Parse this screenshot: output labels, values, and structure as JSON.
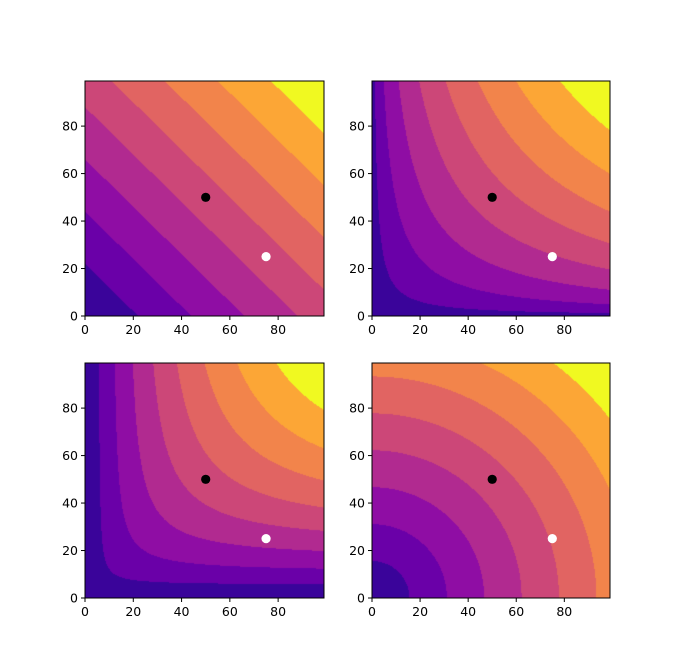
{
  "figure": {
    "layout": "2x2 grid of filled contour plots"
  },
  "chart_data": [
    {
      "type": "contour",
      "panel": "top-left",
      "function": "linear (x + y)",
      "xlim": [
        0,
        99
      ],
      "ylim": [
        0,
        99
      ],
      "xticks": [
        0,
        20,
        40,
        60,
        80
      ],
      "yticks": [
        0,
        20,
        40,
        60,
        80
      ],
      "xtick_labels": [
        "0",
        "20",
        "40",
        "60",
        "80"
      ],
      "ytick_labels": [
        "0",
        "20",
        "40",
        "60",
        "80"
      ],
      "levels": 9,
      "colormap": "plasma",
      "markers": [
        {
          "x": 50,
          "y": 50,
          "color": "#000000"
        },
        {
          "x": 75,
          "y": 25,
          "color": "#ffffff"
        }
      ]
    },
    {
      "type": "contour",
      "panel": "top-right",
      "function": "product sqrt (x*y)",
      "xlim": [
        0,
        99
      ],
      "ylim": [
        0,
        99
      ],
      "xticks": [
        0,
        20,
        40,
        60,
        80
      ],
      "yticks": [
        0,
        20,
        40,
        60,
        80
      ],
      "xtick_labels": [
        "0",
        "20",
        "40",
        "60",
        "80"
      ],
      "ytick_labels": [
        "0",
        "20",
        "40",
        "60",
        "80"
      ],
      "levels": 9,
      "colormap": "plasma",
      "markers": [
        {
          "x": 50,
          "y": 50,
          "color": "#000000"
        },
        {
          "x": 75,
          "y": 25,
          "color": "#ffffff"
        }
      ]
    },
    {
      "type": "contour",
      "panel": "bottom-left",
      "function": "Leontief-like min (x,y)",
      "xlim": [
        0,
        99
      ],
      "ylim": [
        0,
        99
      ],
      "xticks": [
        0,
        20,
        40,
        60,
        80
      ],
      "yticks": [
        0,
        20,
        40,
        60,
        80
      ],
      "xtick_labels": [
        "0",
        "20",
        "40",
        "60",
        "80"
      ],
      "ytick_labels": [
        "0",
        "20",
        "40",
        "60",
        "80"
      ],
      "levels": 9,
      "colormap": "plasma",
      "markers": [
        {
          "x": 50,
          "y": 50,
          "color": "#000000"
        },
        {
          "x": 75,
          "y": 25,
          "color": "#ffffff"
        }
      ]
    },
    {
      "type": "contour",
      "panel": "bottom-right",
      "function": "radial sqrt(x^2 + y^2)",
      "xlim": [
        0,
        99
      ],
      "ylim": [
        0,
        99
      ],
      "xticks": [
        0,
        20,
        40,
        60,
        80
      ],
      "yticks": [
        0,
        20,
        40,
        60,
        80
      ],
      "xtick_labels": [
        "0",
        "20",
        "40",
        "60",
        "80"
      ],
      "ytick_labels": [
        "0",
        "20",
        "40",
        "60",
        "80"
      ],
      "levels": 9,
      "colormap": "plasma",
      "markers": [
        {
          "x": 50,
          "y": 50,
          "color": "#000000"
        },
        {
          "x": 75,
          "y": 25,
          "color": "#ffffff"
        }
      ]
    }
  ],
  "colors": {
    "plasma": [
      "#3a049a",
      "#6a00a8",
      "#8f0da4",
      "#b12a90",
      "#cc4778",
      "#e16462",
      "#f2844b",
      "#fca636",
      "#f0f921"
    ]
  }
}
